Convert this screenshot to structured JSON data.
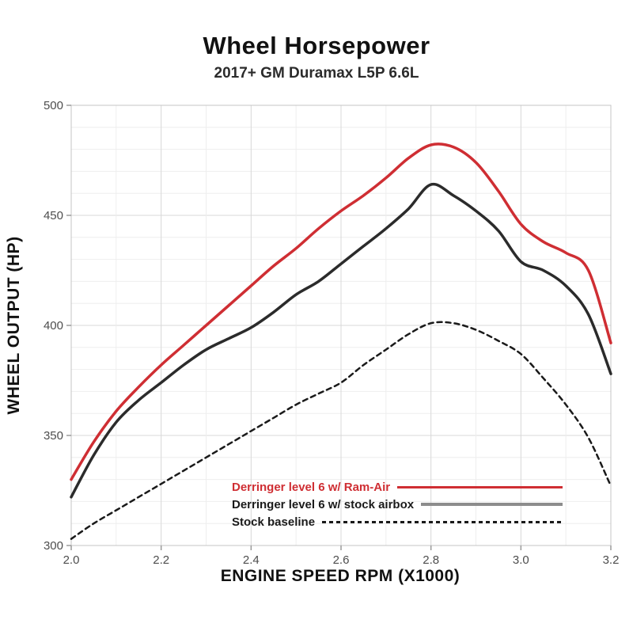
{
  "header": {
    "title": "Wheel Horsepower",
    "subtitle": "2017+ GM Duramax L5P 6.6L"
  },
  "chart_data": {
    "type": "line",
    "title": "Wheel Horsepower",
    "subtitle": "2017+ GM Duramax L5P 6.6L",
    "xlabel": "ENGINE SPEED RPM (X1000)",
    "ylabel": "WHEEL OUTPUT (HP)",
    "xlim": [
      2.0,
      3.2
    ],
    "ylim": [
      300,
      500
    ],
    "x_tick_labels": [
      "2.0",
      "2.2",
      "2.4",
      "2.6",
      "2.8",
      "3.0",
      "3.2"
    ],
    "x_tick_values": [
      2.0,
      2.2,
      2.4,
      2.6,
      2.8,
      3.0,
      3.2
    ],
    "y_tick_labels": [
      "300",
      "350",
      "400",
      "450",
      "500"
    ],
    "y_tick_values": [
      300,
      350,
      400,
      450,
      500
    ],
    "grid": {
      "major": true,
      "minor": true,
      "minor_x_step": 0.1,
      "minor_y_step": 10
    },
    "legend_position": "inside-bottom-right",
    "x": [
      2.0,
      2.05,
      2.1,
      2.15,
      2.2,
      2.25,
      2.3,
      2.35,
      2.4,
      2.45,
      2.5,
      2.55,
      2.6,
      2.65,
      2.7,
      2.75,
      2.8,
      2.85,
      2.9,
      2.95,
      3.0,
      3.05,
      3.1,
      3.15,
      3.2
    ],
    "series": [
      {
        "name": "Derringer level 6 w/ Ram-Air",
        "color": "#cf2e33",
        "style": "solid",
        "values": [
          330,
          347,
          361,
          372,
          382,
          391,
          400,
          409,
          418,
          427,
          435,
          444,
          452,
          459,
          467,
          476,
          482,
          481,
          474,
          461,
          446,
          438,
          433,
          425,
          392
        ]
      },
      {
        "name": "Derringer level 6 w/ stock airbox",
        "color": "#2b2b2b",
        "style": "solid",
        "legend_line_color": "#8c8c8c",
        "values": [
          322,
          341,
          356,
          366,
          374,
          382,
          389,
          394,
          399,
          406,
          414,
          420,
          428,
          436,
          444,
          453,
          464,
          459,
          452,
          443,
          429,
          425,
          418,
          405,
          378
        ]
      },
      {
        "name": "Stock baseline",
        "color": "#1a1a1a",
        "style": "dashed",
        "values": [
          303,
          310,
          316,
          322,
          328,
          334,
          340,
          346,
          352,
          358,
          364,
          369,
          374,
          382,
          389,
          396,
          401,
          401,
          398,
          393,
          387,
          376,
          364,
          349,
          327
        ]
      }
    ],
    "colors": {
      "grid_major": "#d8d8d8",
      "grid_minor": "#eeeeee",
      "axis_border": "#c4c4c4",
      "tick": "#9a9a9a",
      "tick_label": "#4d4d4d"
    }
  }
}
